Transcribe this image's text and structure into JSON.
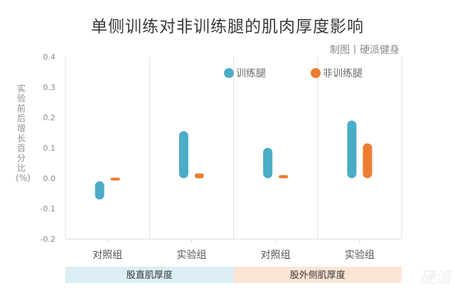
{
  "chart_data": {
    "type": "floating-bar",
    "title": "单侧训练对非训练腿的肌肉厚度影响",
    "credit": "制图丨硬派健身",
    "ylabel": "实验前后增长百分比(%)",
    "ylim": [
      -0.2,
      0.4
    ],
    "yticks": [
      "0.4",
      "0.3",
      "0.2",
      "0.1",
      "0.0",
      "-0.1",
      "-0.2"
    ],
    "grid": "vertical separators",
    "legend_position": "top-right",
    "categories": [
      "对照组",
      "实验组",
      "对照组",
      "实验组"
    ],
    "groups": [
      "股直肌厚度",
      "股外侧肌厚度"
    ],
    "series": [
      {
        "name": "训练腿",
        "color": "#4bacc6",
        "ranges": [
          [
            -0.07,
            -0.01
          ],
          [
            0.0,
            0.155
          ],
          [
            0.0,
            0.1
          ],
          [
            0.0,
            0.19
          ]
        ]
      },
      {
        "name": "非训练腿",
        "color": "#ed7d31",
        "ranges": [
          [
            0.0,
            0.002
          ],
          [
            0.0,
            0.016
          ],
          [
            0.0,
            0.01
          ],
          [
            0.0,
            0.115
          ]
        ]
      }
    ],
    "group_colors": [
      "#daeef3",
      "#fde5d6"
    ]
  },
  "watermark": "硬派"
}
